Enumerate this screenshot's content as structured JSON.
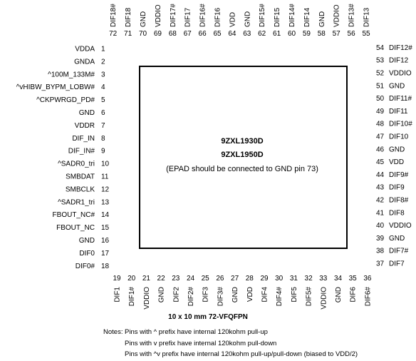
{
  "chip": {
    "part_numbers": [
      "9ZXL1930D",
      "9ZXL1950D"
    ],
    "epad_note": "(EPAD should be connected to GND pin 73)"
  },
  "pins_left": [
    {
      "num": "1",
      "name": "VDDA"
    },
    {
      "num": "2",
      "name": "GNDA"
    },
    {
      "num": "3",
      "name": "^100M_133M#"
    },
    {
      "num": "4",
      "name": "^vHIBW_BYPM_LOBW#"
    },
    {
      "num": "5",
      "name": "^CKPWRGD_PD#"
    },
    {
      "num": "6",
      "name": "GND"
    },
    {
      "num": "7",
      "name": "VDDR"
    },
    {
      "num": "8",
      "name": "DIF_IN"
    },
    {
      "num": "9",
      "name": "DIF_IN#"
    },
    {
      "num": "10",
      "name": "^SADR0_tri"
    },
    {
      "num": "11",
      "name": "SMBDAT"
    },
    {
      "num": "12",
      "name": "SMBCLK"
    },
    {
      "num": "13",
      "name": "^SADR1_tri"
    },
    {
      "num": "14",
      "name": "FBOUT_NC#"
    },
    {
      "num": "15",
      "name": "FBOUT_NC"
    },
    {
      "num": "16",
      "name": "GND"
    },
    {
      "num": "17",
      "name": "DIF0"
    },
    {
      "num": "18",
      "name": "DIF0#"
    }
  ],
  "pins_bottom": [
    {
      "num": "19",
      "name": "DIF1"
    },
    {
      "num": "20",
      "name": "DIF1#"
    },
    {
      "num": "21",
      "name": "VDDIO"
    },
    {
      "num": "22",
      "name": "GND"
    },
    {
      "num": "23",
      "name": "DIF2"
    },
    {
      "num": "24",
      "name": "DIF2#"
    },
    {
      "num": "25",
      "name": "DIF3"
    },
    {
      "num": "26",
      "name": "DIF3#"
    },
    {
      "num": "27",
      "name": "GND"
    },
    {
      "num": "28",
      "name": "VDD"
    },
    {
      "num": "29",
      "name": "DIF4"
    },
    {
      "num": "30",
      "name": "DIF4#"
    },
    {
      "num": "31",
      "name": "DIF5"
    },
    {
      "num": "32",
      "name": "DIF5#"
    },
    {
      "num": "33",
      "name": "VDDIO"
    },
    {
      "num": "34",
      "name": "GND"
    },
    {
      "num": "35",
      "name": "DIF6"
    },
    {
      "num": "36",
      "name": "DIF6#"
    }
  ],
  "pins_right": [
    {
      "num": "37",
      "name": "DIF7"
    },
    {
      "num": "38",
      "name": "DIF7#"
    },
    {
      "num": "39",
      "name": "GND"
    },
    {
      "num": "40",
      "name": "VDDIO"
    },
    {
      "num": "41",
      "name": "DIF8"
    },
    {
      "num": "42",
      "name": "DIF8#"
    },
    {
      "num": "43",
      "name": "DIF9"
    },
    {
      "num": "44",
      "name": "DIF9#"
    },
    {
      "num": "45",
      "name": "VDD"
    },
    {
      "num": "46",
      "name": "GND"
    },
    {
      "num": "47",
      "name": "DIF10"
    },
    {
      "num": "48",
      "name": "DIF10#"
    },
    {
      "num": "49",
      "name": "DIF11"
    },
    {
      "num": "50",
      "name": "DIF11#"
    },
    {
      "num": "51",
      "name": "GND"
    },
    {
      "num": "52",
      "name": "VDDIO"
    },
    {
      "num": "53",
      "name": "DIF12"
    },
    {
      "num": "54",
      "name": "DIF12#"
    }
  ],
  "pins_top": [
    {
      "num": "55",
      "name": "DIF13"
    },
    {
      "num": "56",
      "name": "DIF13#"
    },
    {
      "num": "57",
      "name": "VDDIO"
    },
    {
      "num": "58",
      "name": "GND"
    },
    {
      "num": "59",
      "name": "DIF14"
    },
    {
      "num": "60",
      "name": "DIF14#"
    },
    {
      "num": "61",
      "name": "DIF15"
    },
    {
      "num": "62",
      "name": "DIF15#"
    },
    {
      "num": "63",
      "name": "GND"
    },
    {
      "num": "64",
      "name": "VDD"
    },
    {
      "num": "65",
      "name": "DIF16"
    },
    {
      "num": "66",
      "name": "DIF16#"
    },
    {
      "num": "67",
      "name": "DIF17"
    },
    {
      "num": "68",
      "name": "DIF17#"
    },
    {
      "num": "69",
      "name": "VDDIO"
    },
    {
      "num": "70",
      "name": "GND"
    },
    {
      "num": "71",
      "name": "DIF18"
    },
    {
      "num": "72",
      "name": "DIF18#"
    }
  ],
  "package": "10 x 10 mm 72-VFQFPN",
  "notes": {
    "label": "Notes:",
    "lines": [
      "Pins with ^ prefix have internal 120kohm pull-up",
      "Pins with v prefix have internal 120kohm pull-down",
      "Pins with ^v prefix have internal 120kohm pull-up/pull-down (biased to VDD/2)"
    ]
  }
}
